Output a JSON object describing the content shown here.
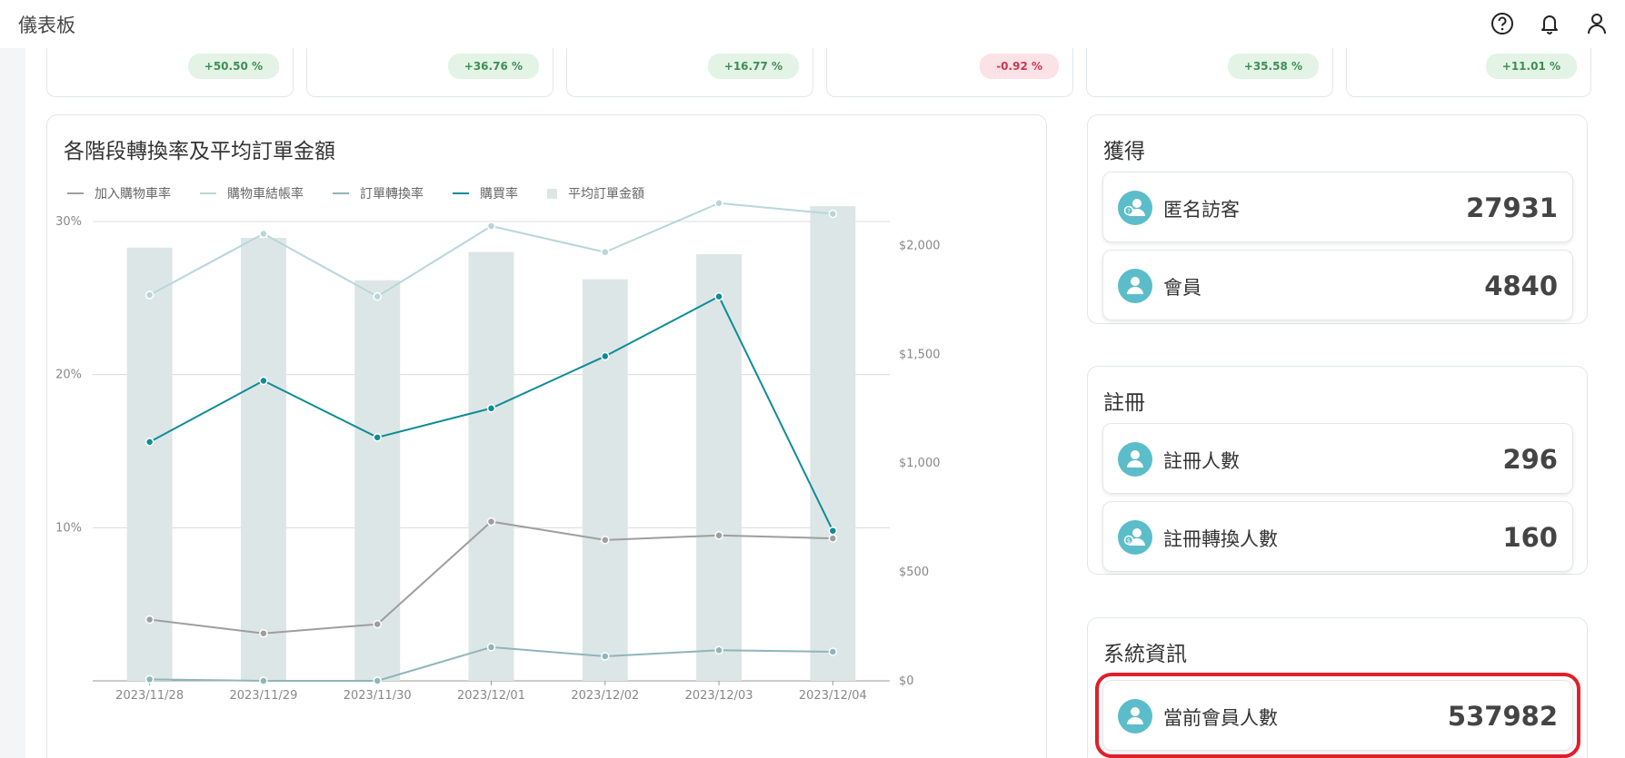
{
  "header": {
    "title": "儀表板",
    "icons": [
      "help-icon",
      "bell-icon",
      "user-icon"
    ]
  },
  "kpis": [
    {
      "change": "+50.50 %",
      "trend": "pos"
    },
    {
      "change": "+36.76 %",
      "trend": "pos"
    },
    {
      "change": "+16.77 %",
      "trend": "pos"
    },
    {
      "change": "-0.92 %",
      "trend": "neg"
    },
    {
      "change": "+35.58 %",
      "trend": "pos"
    },
    {
      "change": "+11.01 %",
      "trend": "pos"
    }
  ],
  "chart_card": {
    "title": "各階段轉換率及平均訂單金額",
    "legend": [
      "加入購物車率",
      "購物車結帳率",
      "訂單轉換率",
      "購買率",
      "平均訂單金額"
    ]
  },
  "chart_data": {
    "type": "bar+line",
    "title": "各階段轉換率及平均訂單金額",
    "categories": [
      "2023/11/28",
      "2023/11/29",
      "2023/11/30",
      "2023/12/01",
      "2023/12/02",
      "2023/12/03",
      "2023/12/04"
    ],
    "y_left": {
      "ticks": [
        "30%",
        "20%",
        "10%"
      ],
      "tick_values": [
        30,
        20,
        10
      ],
      "range": [
        0,
        30
      ]
    },
    "y_right": {
      "ticks": [
        "$2,000",
        "$1,500",
        "$1,000",
        "$500",
        "$0"
      ],
      "tick_values": [
        2000,
        1500,
        1000,
        500,
        0
      ],
      "range": [
        0,
        2110
      ]
    },
    "bars": {
      "name": "平均訂單金額",
      "axis": "right",
      "color": "#dde6e6",
      "values": [
        1990,
        2035,
        1840,
        1970,
        1845,
        1960,
        2180
      ]
    },
    "series": [
      {
        "name": "加入購物車率",
        "axis": "left",
        "color": "#9e9e9e",
        "values": [
          4.0,
          3.1,
          3.7,
          10.4,
          9.2,
          9.5,
          9.3
        ]
      },
      {
        "name": "購物車結帳率",
        "axis": "left",
        "color": "#b8d6da",
        "values": [
          25.2,
          29.2,
          25.1,
          29.7,
          28.0,
          31.2,
          30.5
        ]
      },
      {
        "name": "訂單轉換率",
        "axis": "left",
        "color": "#8fb5ba",
        "values": [
          0.1,
          0.0,
          0.0,
          2.2,
          1.6,
          2.0,
          1.9
        ]
      },
      {
        "name": "購買率",
        "axis": "left",
        "color": "#0e8c96",
        "values": [
          15.6,
          19.6,
          15.9,
          17.8,
          21.2,
          25.1,
          9.8
        ]
      }
    ]
  },
  "acquisition": {
    "title": "獲得",
    "stats": [
      {
        "label": "匿名訪客",
        "value": "27931"
      },
      {
        "label": "會員",
        "value": "4840"
      }
    ]
  },
  "registration": {
    "title": "註冊",
    "stats": [
      {
        "label": "註冊人數",
        "value": "296"
      },
      {
        "label": "註冊轉換人數",
        "value": "160"
      }
    ]
  },
  "system": {
    "title": "系統資訊",
    "stats": [
      {
        "label": "當前會員人數",
        "value": "537982"
      }
    ]
  },
  "colors": {
    "accent": "#0e8c96",
    "avatar": "#5bbdc9",
    "highlight": "#e01f2a"
  }
}
